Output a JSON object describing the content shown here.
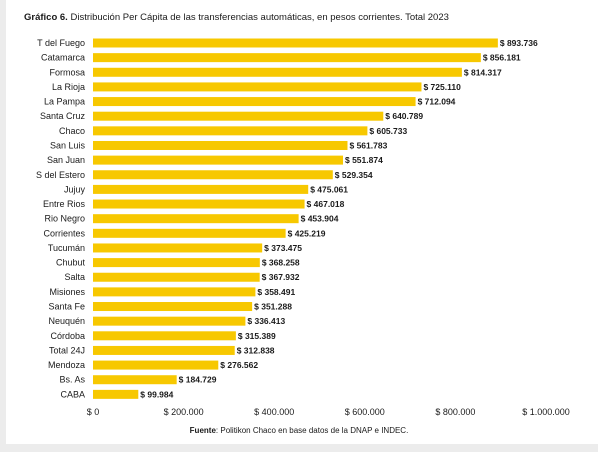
{
  "title": {
    "prefix": "Gráfico 6.",
    "text": "Distribución Per Cápita de las transferencias automáticas, en pesos corrientes. Total 2023"
  },
  "source": {
    "label": "Fuente",
    "text": ": Politikon Chaco en base datos de la DNAP e INDEC."
  },
  "colors": {
    "bar": "#F7C800",
    "text": "#1a1a1a",
    "background": "#ffffff"
  },
  "chart_data": {
    "type": "bar",
    "orientation": "horizontal",
    "categories": [
      "T del Fuego",
      "Catamarca",
      "Formosa",
      "La Rioja",
      "La Pampa",
      "Santa Cruz",
      "Chaco",
      "San Luis",
      "San Juan",
      "S del Estero",
      "Jujuy",
      "Entre Rios",
      "Rio Negro",
      "Corrientes",
      "Tucumán",
      "Chubut",
      "Salta",
      "Misiones",
      "Santa Fe",
      "Neuquén",
      "Córdoba",
      "Total 24J",
      "Mendoza",
      "Bs. As",
      "CABA"
    ],
    "values": [
      893736,
      856181,
      814317,
      725110,
      712094,
      640789,
      605733,
      561783,
      551874,
      529354,
      475061,
      467018,
      453904,
      425219,
      373475,
      368258,
      367932,
      358491,
      351288,
      336413,
      315389,
      312838,
      276562,
      184729,
      99984
    ],
    "value_labels": [
      "$ 893.736",
      "$ 856.181",
      "$ 814.317",
      "$ 725.110",
      "$ 712.094",
      "$ 640.789",
      "$ 605.733",
      "$ 561.783",
      "$ 551.874",
      "$ 529.354",
      "$ 475.061",
      "$ 467.018",
      "$ 453.904",
      "$ 425.219",
      "$ 373.475",
      "$ 368.258",
      "$ 367.932",
      "$ 358.491",
      "$ 351.288",
      "$ 336.413",
      "$ 315.389",
      "$ 312.838",
      "$ 276.562",
      "$ 184.729",
      "$ 99.984"
    ],
    "xlim": [
      0,
      1000000
    ],
    "xticks": [
      0,
      200000,
      400000,
      600000,
      800000,
      1000000
    ],
    "xtick_labels": [
      "$ 0",
      "$ 200.000",
      "$ 400.000",
      "$ 600.000",
      "$ 800.000",
      "$ 1.000.000"
    ],
    "grid": false,
    "legend": "none"
  }
}
